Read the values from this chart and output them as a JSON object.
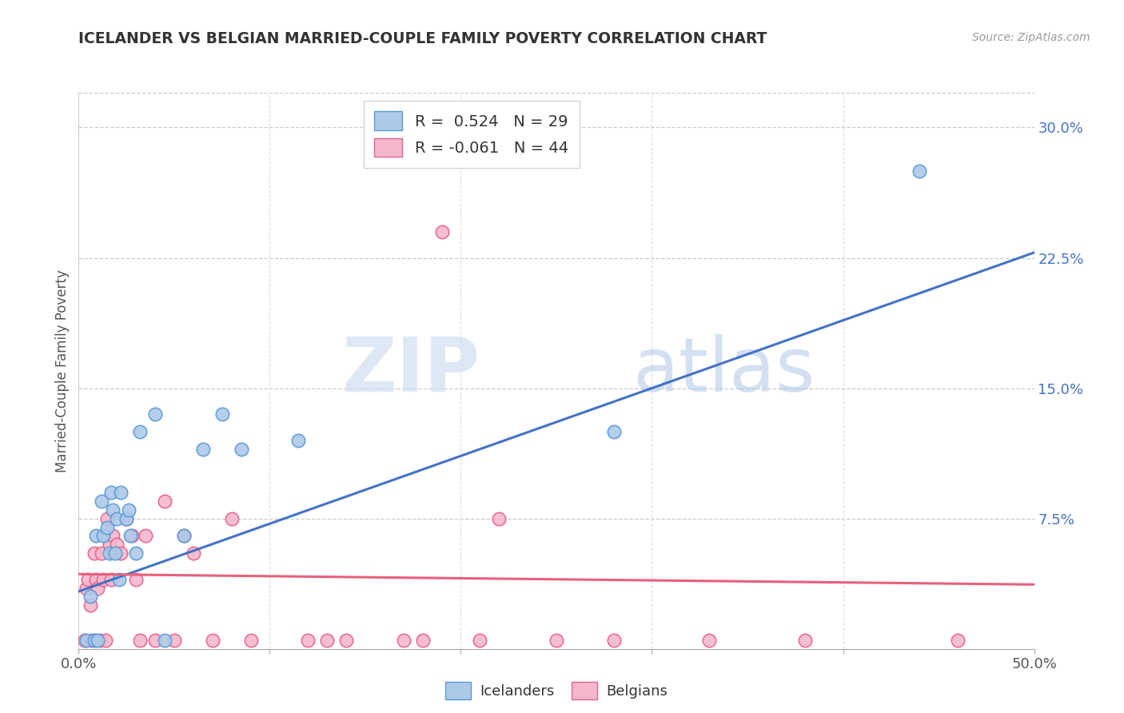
{
  "title": "ICELANDER VS BELGIAN MARRIED-COUPLE FAMILY POVERTY CORRELATION CHART",
  "source": "Source: ZipAtlas.com",
  "ylabel": "Married-Couple Family Poverty",
  "ytick_values": [
    0.0,
    0.075,
    0.15,
    0.225,
    0.3
  ],
  "ytick_labels": [
    "",
    "7.5%",
    "15.0%",
    "22.5%",
    "30.0%"
  ],
  "xtick_values": [
    0.0,
    0.1,
    0.2,
    0.3,
    0.4,
    0.5
  ],
  "xtick_labels": [
    "0.0%",
    "",
    "",
    "",
    "",
    "50.0%"
  ],
  "xlim": [
    0.0,
    0.5
  ],
  "ylim": [
    0.0,
    0.32
  ],
  "watermark_zip": "ZIP",
  "watermark_atlas": "atlas",
  "legend_line1": "R =  0.524   N = 29",
  "legend_line2": "R = -0.061   N = 44",
  "icelander_face": "#adc9e8",
  "icelander_edge": "#5b9bd5",
  "belgian_face": "#f5b8ca",
  "belgian_edge": "#e86090",
  "line_blue": "#4472c4",
  "line_pink": "#e8607a",
  "icelanders_x": [
    0.004,
    0.006,
    0.008,
    0.009,
    0.01,
    0.012,
    0.013,
    0.015,
    0.016,
    0.017,
    0.018,
    0.019,
    0.02,
    0.021,
    0.022,
    0.025,
    0.026,
    0.027,
    0.03,
    0.032,
    0.04,
    0.045,
    0.055,
    0.065,
    0.075,
    0.085,
    0.115,
    0.28,
    0.44
  ],
  "icelanders_y": [
    0.005,
    0.03,
    0.005,
    0.065,
    0.005,
    0.085,
    0.065,
    0.07,
    0.055,
    0.09,
    0.08,
    0.055,
    0.075,
    0.04,
    0.09,
    0.075,
    0.08,
    0.065,
    0.055,
    0.125,
    0.135,
    0.005,
    0.065,
    0.115,
    0.135,
    0.115,
    0.12,
    0.125,
    0.275
  ],
  "belgians_x": [
    0.003,
    0.004,
    0.005,
    0.006,
    0.007,
    0.008,
    0.009,
    0.01,
    0.011,
    0.012,
    0.013,
    0.014,
    0.015,
    0.016,
    0.017,
    0.018,
    0.02,
    0.022,
    0.025,
    0.028,
    0.03,
    0.032,
    0.035,
    0.04,
    0.045,
    0.05,
    0.055,
    0.06,
    0.07,
    0.08,
    0.09,
    0.12,
    0.13,
    0.14,
    0.17,
    0.18,
    0.19,
    0.21,
    0.22,
    0.25,
    0.28,
    0.33,
    0.38,
    0.46
  ],
  "belgians_y": [
    0.005,
    0.035,
    0.04,
    0.025,
    0.005,
    0.055,
    0.04,
    0.035,
    0.005,
    0.055,
    0.04,
    0.005,
    0.075,
    0.06,
    0.04,
    0.065,
    0.06,
    0.055,
    0.075,
    0.065,
    0.04,
    0.005,
    0.065,
    0.005,
    0.085,
    0.005,
    0.065,
    0.055,
    0.005,
    0.075,
    0.005,
    0.005,
    0.005,
    0.005,
    0.005,
    0.005,
    0.24,
    0.005,
    0.075,
    0.005,
    0.005,
    0.005,
    0.005,
    0.005
  ],
  "blue_line_x": [
    0.0,
    0.5
  ],
  "blue_line_y": [
    0.033,
    0.228
  ],
  "pink_line_x": [
    0.0,
    0.5
  ],
  "pink_line_y": [
    0.043,
    0.037
  ]
}
